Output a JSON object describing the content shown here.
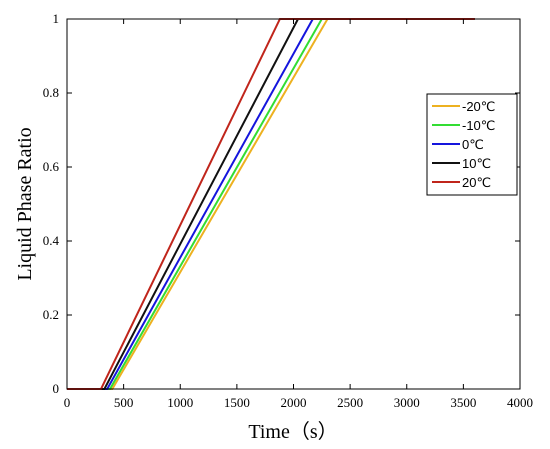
{
  "chart_data": {
    "type": "line",
    "title": "",
    "xlabel": "Time（s）",
    "ylabel": "Liquid Phase Ratio",
    "xlim": [
      0,
      4000
    ],
    "ylim": [
      0,
      1
    ],
    "xticks": [
      0,
      500,
      1000,
      1500,
      2000,
      2500,
      3000,
      3500,
      4000
    ],
    "xtick_labels": [
      "0",
      "500",
      "1000",
      "1500",
      "2000",
      "2500",
      "3000",
      "3500",
      "4000"
    ],
    "yticks": [
      0,
      0.2,
      0.4,
      0.6,
      0.8,
      1
    ],
    "ytick_labels": [
      "0",
      "0.2",
      "0.4",
      "0.6",
      "0.8",
      "1"
    ],
    "grid": false,
    "legend_position": "right",
    "series": [
      {
        "name": "-20℃",
        "color": "#EDB120",
        "x": [
          0,
          400,
          2300,
          3600
        ],
        "y": [
          0,
          0,
          1,
          1
        ]
      },
      {
        "name": "-10℃",
        "color": "#33DD33",
        "x": [
          0,
          380,
          2250,
          3600
        ],
        "y": [
          0,
          0,
          1,
          1
        ]
      },
      {
        "name": "0℃",
        "color": "#1515DD",
        "x": [
          0,
          355,
          2170,
          3600
        ],
        "y": [
          0,
          0,
          1,
          1
        ]
      },
      {
        "name": "10℃",
        "color": "#111111",
        "x": [
          0,
          330,
          2040,
          3600
        ],
        "y": [
          0,
          0,
          1,
          1
        ]
      },
      {
        "name": "20℃",
        "color": "#C0251B",
        "x": [
          0,
          300,
          1880,
          3600
        ],
        "y": [
          0,
          0,
          1,
          1
        ]
      }
    ]
  }
}
